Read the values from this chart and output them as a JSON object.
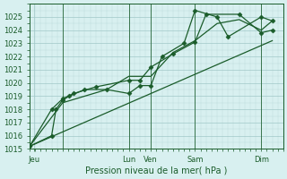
{
  "background_color": "#d8f0f0",
  "grid_color": "#a0c8c8",
  "line_color": "#1a5c2a",
  "marker_color": "#1a5c2a",
  "axis_color": "#1a5c2a",
  "text_color": "#1a5c2a",
  "xlabel": "Pression niveau de la mer( hPa )",
  "ylim": [
    1015,
    1026
  ],
  "xlim": [
    0,
    11.5
  ],
  "yticks": [
    1015,
    1016,
    1017,
    1018,
    1019,
    1020,
    1021,
    1022,
    1023,
    1024,
    1025
  ],
  "day_labels": [
    "Jeu",
    "Lun",
    "Ven",
    "Sam",
    "Dim"
  ],
  "day_positions": [
    0.2,
    4.5,
    5.5,
    7.5,
    10.5
  ],
  "vline_positions": [
    1.5,
    4.5,
    5.5,
    7.5,
    10.5
  ],
  "series": [
    {
      "x": [
        0,
        1,
        1.2,
        1.5,
        1.8,
        2.5,
        3.5,
        4.5,
        5.0,
        5.5,
        6.0,
        7.0,
        7.5,
        8.5,
        9.0,
        10.5,
        11.0
      ],
      "y": [
        1015.2,
        1016.0,
        1018.0,
        1018.7,
        1019.0,
        1019.5,
        1019.5,
        1019.2,
        1019.8,
        1019.8,
        1022.0,
        1023.0,
        1025.5,
        1025.0,
        1023.5,
        1025.0,
        1024.7
      ],
      "with_markers": true
    },
    {
      "x": [
        0,
        1,
        1.5,
        2.0,
        3.0,
        4.5,
        5.0,
        5.5,
        6.5,
        7.5,
        8.0,
        9.5,
        10.5,
        11.0
      ],
      "y": [
        1015.2,
        1018.0,
        1018.8,
        1019.2,
        1019.7,
        1020.2,
        1020.2,
        1021.2,
        1022.2,
        1023.1,
        1025.2,
        1025.2,
        1023.8,
        1024.0
      ],
      "with_markers": true
    },
    {
      "x": [
        0,
        1.5,
        2.5,
        3.5,
        4.5,
        5.5,
        6.5,
        7.5,
        8.5,
        9.5,
        10.5,
        11.0
      ],
      "y": [
        1015.2,
        1018.5,
        1019.0,
        1019.5,
        1020.5,
        1020.5,
        1022.3,
        1023.2,
        1024.5,
        1024.8,
        1024.0,
        1024.7
      ],
      "with_markers": false
    },
    {
      "x": [
        0,
        11.0
      ],
      "y": [
        1015.2,
        1023.2
      ],
      "with_markers": false
    }
  ]
}
